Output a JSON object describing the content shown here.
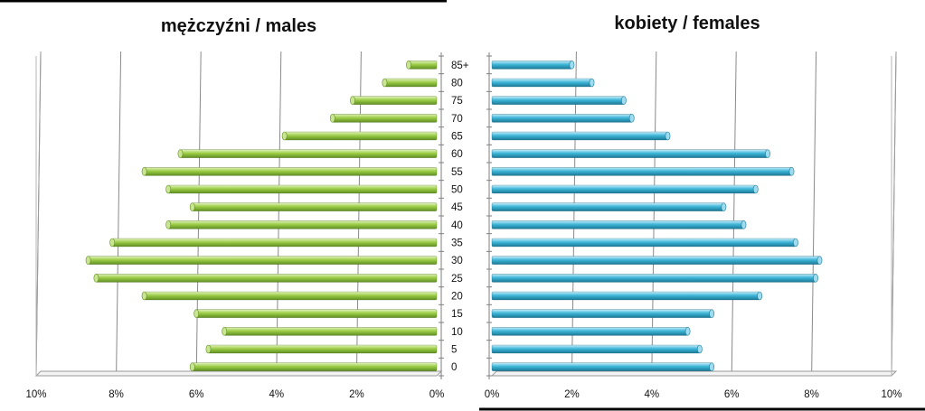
{
  "chart_data": {
    "type": "bar",
    "orientation": "horizontal",
    "layout": "population-pyramid",
    "categories": [
      "0",
      "5",
      "10",
      "15",
      "20",
      "25",
      "30",
      "35",
      "40",
      "45",
      "50",
      "55",
      "60",
      "65",
      "70",
      "75",
      "80",
      "85+"
    ],
    "x_ticks": [
      "0%",
      "2%",
      "4%",
      "6%",
      "8%",
      "10%"
    ],
    "xlim": [
      0,
      10
    ],
    "grid": true,
    "panels": [
      {
        "title": "mężczyźni / males",
        "direction": "left",
        "color": "#92c83e",
        "values": [
          6.1,
          5.7,
          5.3,
          6.0,
          7.3,
          8.5,
          8.7,
          8.1,
          6.7,
          6.1,
          6.7,
          7.3,
          6.4,
          3.8,
          2.6,
          2.1,
          1.3,
          0.7
        ]
      },
      {
        "title": "kobiety / females",
        "direction": "right",
        "color": "#3bb3d4",
        "values": [
          5.5,
          5.2,
          4.9,
          5.5,
          6.7,
          8.1,
          8.2,
          7.6,
          6.3,
          5.8,
          6.6,
          7.5,
          6.9,
          4.4,
          3.5,
          3.3,
          2.5,
          2.0
        ]
      }
    ]
  }
}
